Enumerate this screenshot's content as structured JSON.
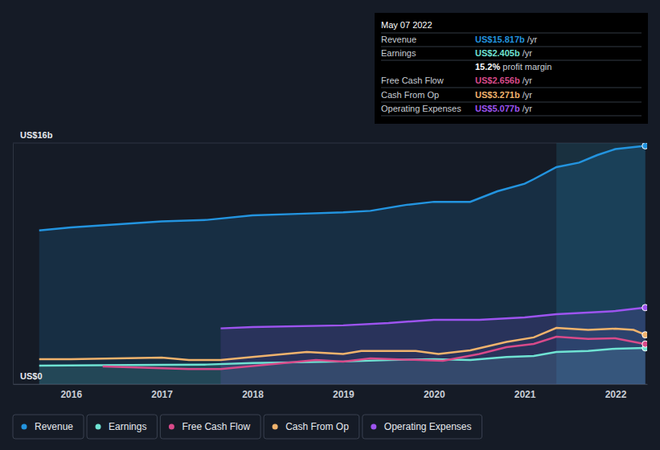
{
  "chart_data": {
    "type": "line",
    "xlim": [
      2015.36,
      2022.35
    ],
    "xticks": [
      2016,
      2017,
      2018,
      2019,
      2020,
      2021,
      2022
    ],
    "ylim": [
      0,
      16
    ],
    "yticks": [
      {
        "value": 0,
        "label": "US$0"
      },
      {
        "value": 16,
        "label": "US$16b"
      }
    ],
    "grid": true,
    "legend": "bottom",
    "highlight_range": [
      2021.35,
      2022.33
    ],
    "series": [
      {
        "name": "Revenue",
        "color": "#2394df",
        "type": "area",
        "x": [
          2015.65,
          2016.0,
          2016.5,
          2017.0,
          2017.5,
          2018.0,
          2018.5,
          2019.0,
          2019.3,
          2019.7,
          2020.0,
          2020.4,
          2020.7,
          2021.0,
          2021.1,
          2021.35,
          2021.6,
          2021.8,
          2022.0,
          2022.33
        ],
        "values": [
          10.2,
          10.4,
          10.6,
          10.8,
          10.9,
          11.2,
          11.3,
          11.4,
          11.5,
          11.9,
          12.1,
          12.1,
          12.8,
          13.3,
          13.6,
          14.4,
          14.7,
          15.2,
          15.6,
          15.817
        ]
      },
      {
        "name": "Earnings",
        "color": "#6fe3d3",
        "type": "area",
        "x": [
          2015.65,
          2017.0,
          2017.5,
          2018.0,
          2019.0,
          2019.5,
          2020.0,
          2020.4,
          2020.8,
          2021.1,
          2021.35,
          2021.7,
          2022.0,
          2022.33
        ],
        "values": [
          1.23,
          1.28,
          1.3,
          1.4,
          1.5,
          1.6,
          1.65,
          1.6,
          1.8,
          1.87,
          2.13,
          2.2,
          2.35,
          2.405
        ]
      },
      {
        "name": "Free Cash Flow",
        "color": "#d84a8a",
        "type": "line",
        "x": [
          2016.35,
          2017.3,
          2017.65,
          2018.0,
          2018.7,
          2019.0,
          2019.3,
          2020.1,
          2020.5,
          2020.8,
          2021.1,
          2021.35,
          2021.7,
          2022.0,
          2022.33
        ],
        "values": [
          1.17,
          1.0,
          1.0,
          1.2,
          1.6,
          1.5,
          1.7,
          1.55,
          2.0,
          2.45,
          2.67,
          3.15,
          3.0,
          3.04,
          2.656
        ]
      },
      {
        "name": "Cash From Op",
        "color": "#f0b36d",
        "type": "line",
        "x": [
          2015.65,
          2016.0,
          2017.0,
          2017.3,
          2017.65,
          2018.0,
          2018.6,
          2019.0,
          2019.2,
          2019.8,
          2020.05,
          2020.4,
          2020.8,
          2021.1,
          2021.35,
          2021.7,
          2022.0,
          2022.2,
          2022.33
        ],
        "values": [
          1.65,
          1.65,
          1.76,
          1.6,
          1.6,
          1.8,
          2.13,
          2.0,
          2.2,
          2.2,
          2.0,
          2.24,
          2.8,
          3.1,
          3.73,
          3.6,
          3.68,
          3.6,
          3.271
        ]
      },
      {
        "name": "Operating Expenses",
        "color": "#9d54f0",
        "type": "area",
        "x": [
          2017.65,
          2018.0,
          2019.0,
          2019.5,
          2020.0,
          2020.5,
          2021.0,
          2021.35,
          2022.0,
          2022.33
        ],
        "values": [
          3.7,
          3.79,
          3.9,
          4.05,
          4.27,
          4.27,
          4.43,
          4.64,
          4.85,
          5.077
        ]
      }
    ],
    "annotation": {
      "title": "May 07 2022",
      "rows": [
        {
          "label": "Revenue",
          "value": "US$15.817b",
          "unit": "/yr"
        },
        {
          "label": "Earnings",
          "value": "US$2.405b",
          "unit": "/yr"
        },
        {
          "label": "Free Cash Flow",
          "value": "US$2.656b",
          "unit": "/yr"
        },
        {
          "label": "Cash From Op",
          "value": "US$3.271b",
          "unit": "/yr"
        },
        {
          "label": "Operating Expenses",
          "value": "US$5.077b",
          "unit": "/yr"
        }
      ],
      "profit_margin": {
        "value": "15.2%",
        "label": "profit margin"
      }
    }
  }
}
